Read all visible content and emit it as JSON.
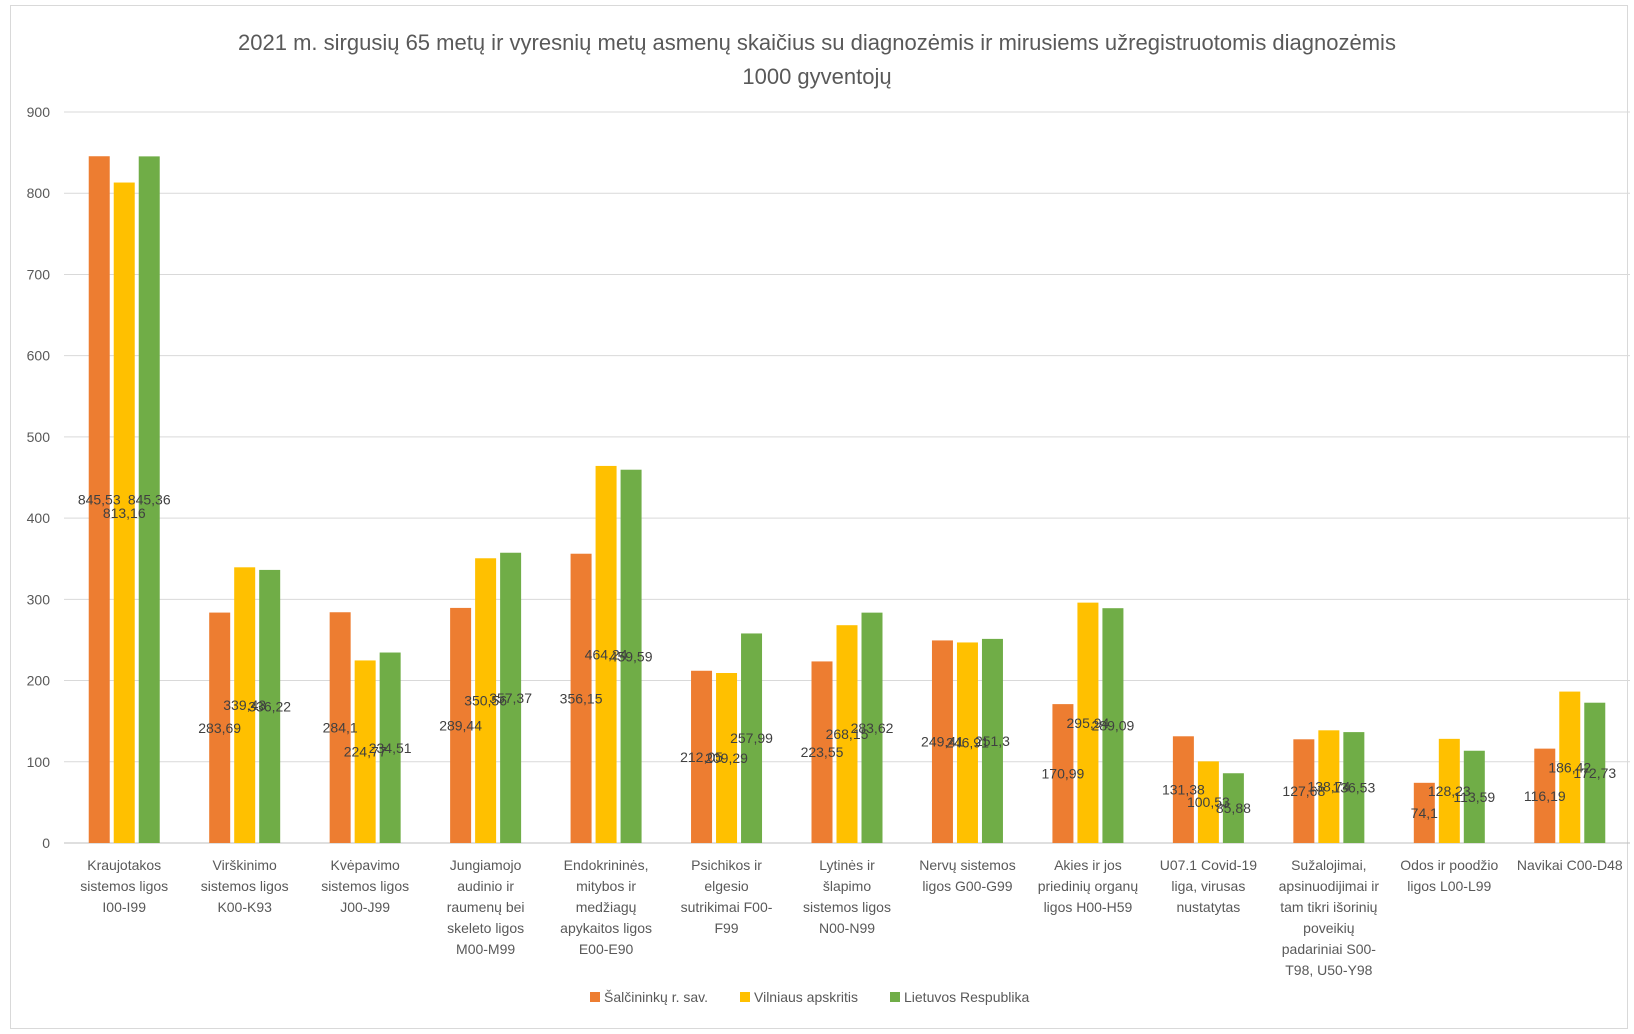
{
  "chart_data": {
    "type": "bar",
    "title": "2021 m. sirgusių 65 metų ir vyresnių metų asmenų skaičius su diagnozėmis ir mirusiems užregistruotomis diagnozėmis",
    "subtitle": "1000 gyventojų",
    "ylim": [
      0,
      900
    ],
    "yticks": [
      "0",
      "100",
      "200",
      "300",
      "400",
      "500",
      "600",
      "700",
      "800",
      "900"
    ],
    "grid": true,
    "legend_position": "bottom",
    "categories": [
      [
        "Kraujotakos",
        "sistemos ligos",
        "I00-I99"
      ],
      [
        "Virškinimo",
        "sistemos ligos",
        "K00-K93"
      ],
      [
        "Kvėpavimo",
        "sistemos ligos",
        "J00-J99"
      ],
      [
        "Jungiamojo",
        "audinio ir",
        "raumenų bei",
        "skeleto ligos",
        "M00-M99"
      ],
      [
        "Endokrininės,",
        "mitybos ir",
        "medžiagų",
        "apykaitos ligos",
        "E00-E90"
      ],
      [
        "Psichikos ir",
        "elgesio",
        "sutrikimai F00-",
        "F99"
      ],
      [
        "Lytinės ir",
        "šlapimo",
        "sistemos ligos",
        "N00-N99"
      ],
      [
        "Nervų sistemos",
        "ligos G00-G99"
      ],
      [
        "Akies ir jos",
        "priedinių organų",
        "ligos H00-H59"
      ],
      [
        "U07.1 Covid-19",
        "liga, virusas",
        "nustatytas"
      ],
      [
        "Sužalojimai,",
        "apsinuodijimai ir",
        "tam tikri išorinių",
        "poveikių",
        "padariniai S00-",
        "T98, U50-Y98"
      ],
      [
        "Odos ir poodžio",
        "ligos L00-L99"
      ],
      [
        "Navikai C00-D48"
      ]
    ],
    "series": [
      {
        "name": "Šalčininkų r. sav.",
        "color": "#ed7d31",
        "values": [
          845.53,
          283.69,
          284.1,
          289.44,
          356.15,
          212.05,
          223.55,
          249.41,
          170.99,
          131.38,
          127.68,
          74.1,
          116.19
        ],
        "labels": [
          "845,53",
          "283,69",
          "284,1",
          "289,44",
          "356,15",
          "212,05",
          "223,55",
          "249,41",
          "170,99",
          "131,38",
          "127,68",
          "74,1",
          "116,19"
        ]
      },
      {
        "name": "Vilniaus apskritis",
        "color": "#ffc000",
        "values": [
          813.16,
          339.43,
          224.77,
          350.56,
          464.24,
          209.29,
          268.15,
          246.91,
          295.94,
          100.53,
          138.74,
          128.23,
          186.42
        ],
        "labels": [
          "813,16",
          "339,43",
          "224,77",
          "350,56",
          "464,24",
          "209,29",
          "268,15",
          "246,91",
          "295,94",
          "100,53",
          "138,74",
          "128,23",
          "186,42"
        ]
      },
      {
        "name": "Lietuvos Respublika",
        "color": "#70ad47",
        "values": [
          845.36,
          336.22,
          234.51,
          357.37,
          459.59,
          257.99,
          283.62,
          251.3,
          289.09,
          85.88,
          136.53,
          113.59,
          172.73
        ],
        "labels": [
          "845,36",
          "336,22",
          "234,51",
          "357,37",
          "459,59",
          "257,99",
          "283,62",
          "251,3",
          "289,09",
          "85,88",
          "136,53",
          "113,59",
          "172,73"
        ]
      }
    ]
  }
}
